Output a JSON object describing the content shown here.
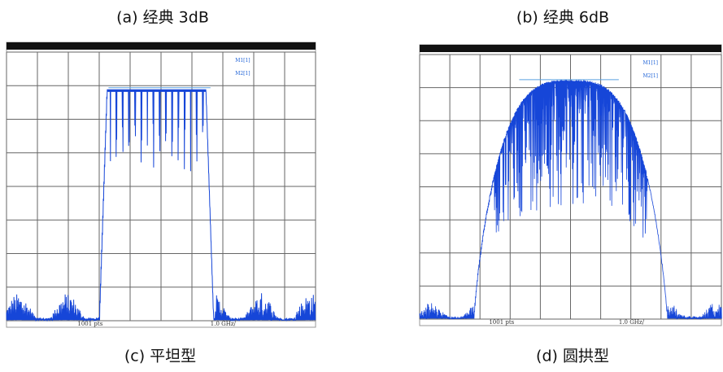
{
  "panels": [
    {
      "caption": "(a) 经典 3dB",
      "marker1": "M1[1]",
      "marker2": "M2[1]",
      "points": "1001 pts",
      "span": "1.0 GHz/"
    },
    {
      "caption": "(b) 经典 6dB",
      "marker1": "M1[1]",
      "marker2": "M2[1]",
      "points": "1001 pts",
      "span": "1.0 GHz/"
    },
    {
      "caption": "(c) 平坦型"
    },
    {
      "caption": "(d) 圆拱型"
    }
  ]
}
